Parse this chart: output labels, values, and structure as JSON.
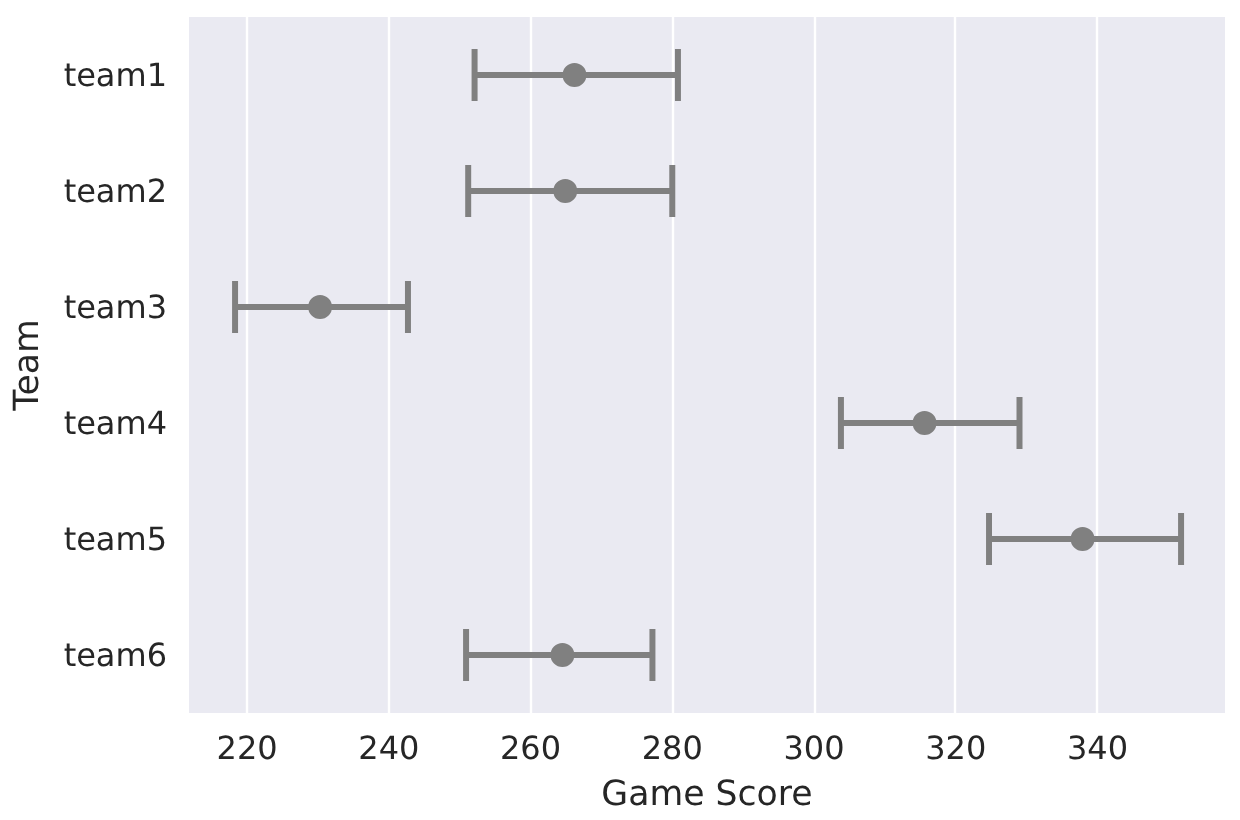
{
  "chart_data": {
    "type": "scatter",
    "orientation": "horizontal",
    "xlabel": "Game Score",
    "ylabel": "Team",
    "categories": [
      "team1",
      "team2",
      "team3",
      "team4",
      "team5",
      "team6"
    ],
    "values": [
      266.2,
      264.9,
      230.3,
      315.6,
      337.9,
      264.5
    ],
    "errors": [
      [
        252.1,
        280.8
      ],
      [
        251.2,
        280.0
      ],
      [
        218.3,
        242.7
      ],
      [
        303.8,
        329.0
      ],
      [
        324.7,
        351.8
      ],
      [
        250.9,
        277.2
      ]
    ],
    "color": "#808080",
    "marker": "circle",
    "grid": "x",
    "xlim": [
      211.8,
      358.0
    ],
    "xticks": [
      220,
      240,
      260,
      280,
      300,
      320,
      340
    ]
  }
}
